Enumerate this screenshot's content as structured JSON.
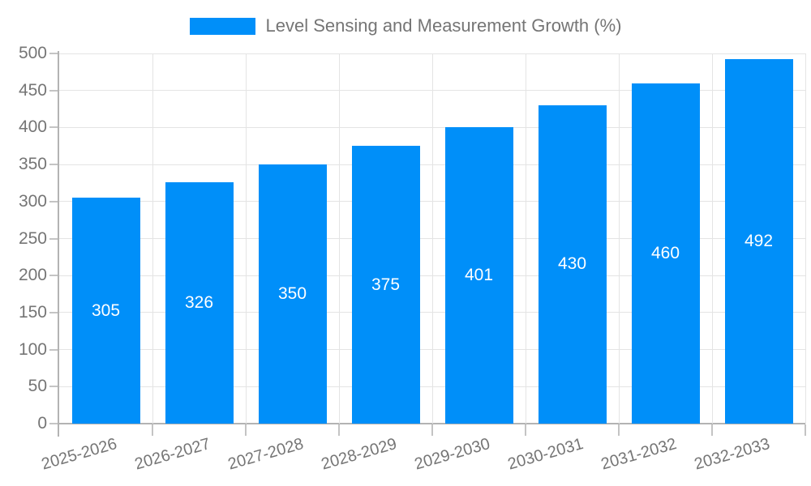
{
  "legend": {
    "label": "Level Sensing and Measurement Growth (%)"
  },
  "chart_data": {
    "type": "bar",
    "title": "Level Sensing and Measurement Growth (%)",
    "categories": [
      "2025-2026",
      "2026-2027",
      "2027-2028",
      "2028-2029",
      "2029-2030",
      "2030-2031",
      "2031-2032",
      "2032-2033"
    ],
    "values": [
      305,
      326,
      350,
      375,
      401,
      430,
      460,
      492
    ],
    "xlabel": "",
    "ylabel": "",
    "ylim": [
      0,
      500
    ],
    "yticks": [
      0,
      50,
      100,
      150,
      200,
      250,
      300,
      350,
      400,
      450,
      500
    ],
    "grid": true,
    "legend_position": "top",
    "value_labels_inside_bars": true,
    "colors": {
      "bar": "#008FF9",
      "value_label": "#FFFFFF",
      "axis_text": "#757575",
      "gridline": "#E4E4E4",
      "axis_line": "#B3B3B3",
      "tick": "#C4C4C4",
      "background": "#FFFFFF"
    }
  }
}
